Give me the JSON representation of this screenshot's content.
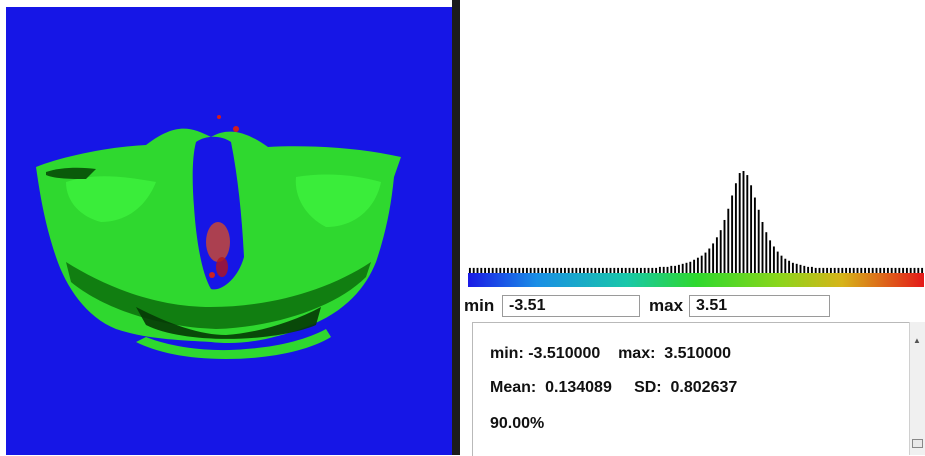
{
  "colors": {
    "background": "#1616e6",
    "histogram_bar": "#000000"
  },
  "viewer": {
    "description_icon": "brain-surface-render-icon"
  },
  "range": {
    "min_label": "min",
    "min_value": "-3.51",
    "max_label": "max",
    "max_value": "3.51"
  },
  "stats": {
    "line1": "min: -3.510000    max:  3.510000",
    "line2": "Mean:  0.134089     SD:  0.802637",
    "line3": "90.00%"
  },
  "histogram": {
    "values": [
      0.05,
      0.05,
      0.05,
      0.05,
      0.05,
      0.05,
      0.05,
      0.05,
      0.05,
      0.05,
      0.05,
      0.05,
      0.05,
      0.05,
      0.05,
      0.05,
      0.05,
      0.05,
      0.05,
      0.05,
      0.05,
      0.05,
      0.05,
      0.05,
      0.05,
      0.05,
      0.05,
      0.05,
      0.05,
      0.05,
      0.05,
      0.05,
      0.05,
      0.05,
      0.05,
      0.05,
      0.05,
      0.05,
      0.05,
      0.05,
      0.05,
      0.05,
      0.05,
      0.05,
      0.05,
      0.05,
      0.05,
      0.05,
      0.05,
      0.05,
      0.06,
      0.06,
      0.06,
      0.07,
      0.07,
      0.08,
      0.09,
      0.1,
      0.11,
      0.13,
      0.15,
      0.17,
      0.2,
      0.24,
      0.29,
      0.35,
      0.42,
      0.52,
      0.63,
      0.76,
      0.88,
      0.98,
      1.0,
      0.96,
      0.86,
      0.74,
      0.62,
      0.5,
      0.4,
      0.32,
      0.26,
      0.21,
      0.17,
      0.14,
      0.12,
      0.1,
      0.09,
      0.08,
      0.07,
      0.06,
      0.06,
      0.05,
      0.05,
      0.05,
      0.05,
      0.05,
      0.05,
      0.05,
      0.05,
      0.05,
      0.05,
      0.05,
      0.05,
      0.05,
      0.05,
      0.05,
      0.05,
      0.05,
      0.05,
      0.05,
      0.05,
      0.05,
      0.05,
      0.05,
      0.05,
      0.05,
      0.05,
      0.05,
      0.05,
      0.05
    ]
  }
}
